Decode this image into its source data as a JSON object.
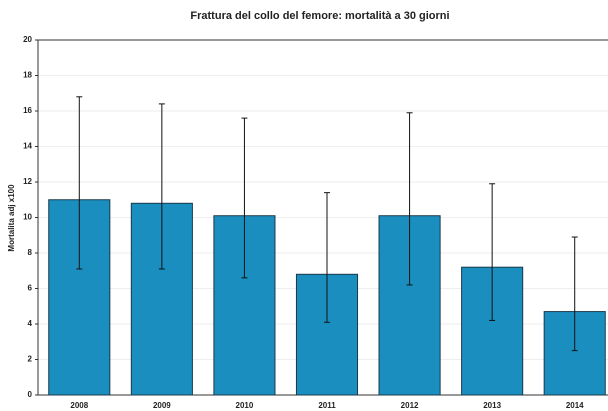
{
  "chart_data": {
    "type": "bar",
    "title": "Frattura del collo del femore: mortalità a 30 giorni",
    "y_label": "Mortalita adj x100",
    "categories": [
      "2008",
      "2009",
      "2010",
      "2011",
      "2012",
      "2013",
      "2014"
    ],
    "values": [
      11.0,
      10.8,
      10.1,
      6.8,
      10.1,
      7.2,
      4.7
    ],
    "ci_low": [
      7.1,
      7.1,
      6.6,
      4.1,
      6.2,
      4.2,
      2.5
    ],
    "ci_high": [
      16.8,
      16.4,
      15.6,
      11.4,
      15.9,
      11.9,
      8.9
    ],
    "color": "#1a8fbf",
    "ylim": [
      0,
      20
    ],
    "yticks": [
      0,
      2,
      4,
      6,
      8,
      10,
      12,
      14,
      16,
      18,
      20
    ],
    "grid": true
  }
}
